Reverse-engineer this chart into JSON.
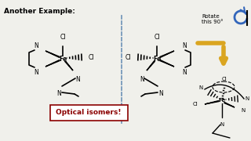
{
  "title": "Another Example:",
  "optical_label": "Optical isomers!",
  "optical_color": "#8B0000",
  "bg_color": "#f0f0eb",
  "dashed_line_color": "#7799bb",
  "arrow_color": "#DAA520",
  "rotate_text": "Rotate\nthis 90°",
  "figsize": [
    3.2,
    1.8
  ],
  "dpi": 100
}
